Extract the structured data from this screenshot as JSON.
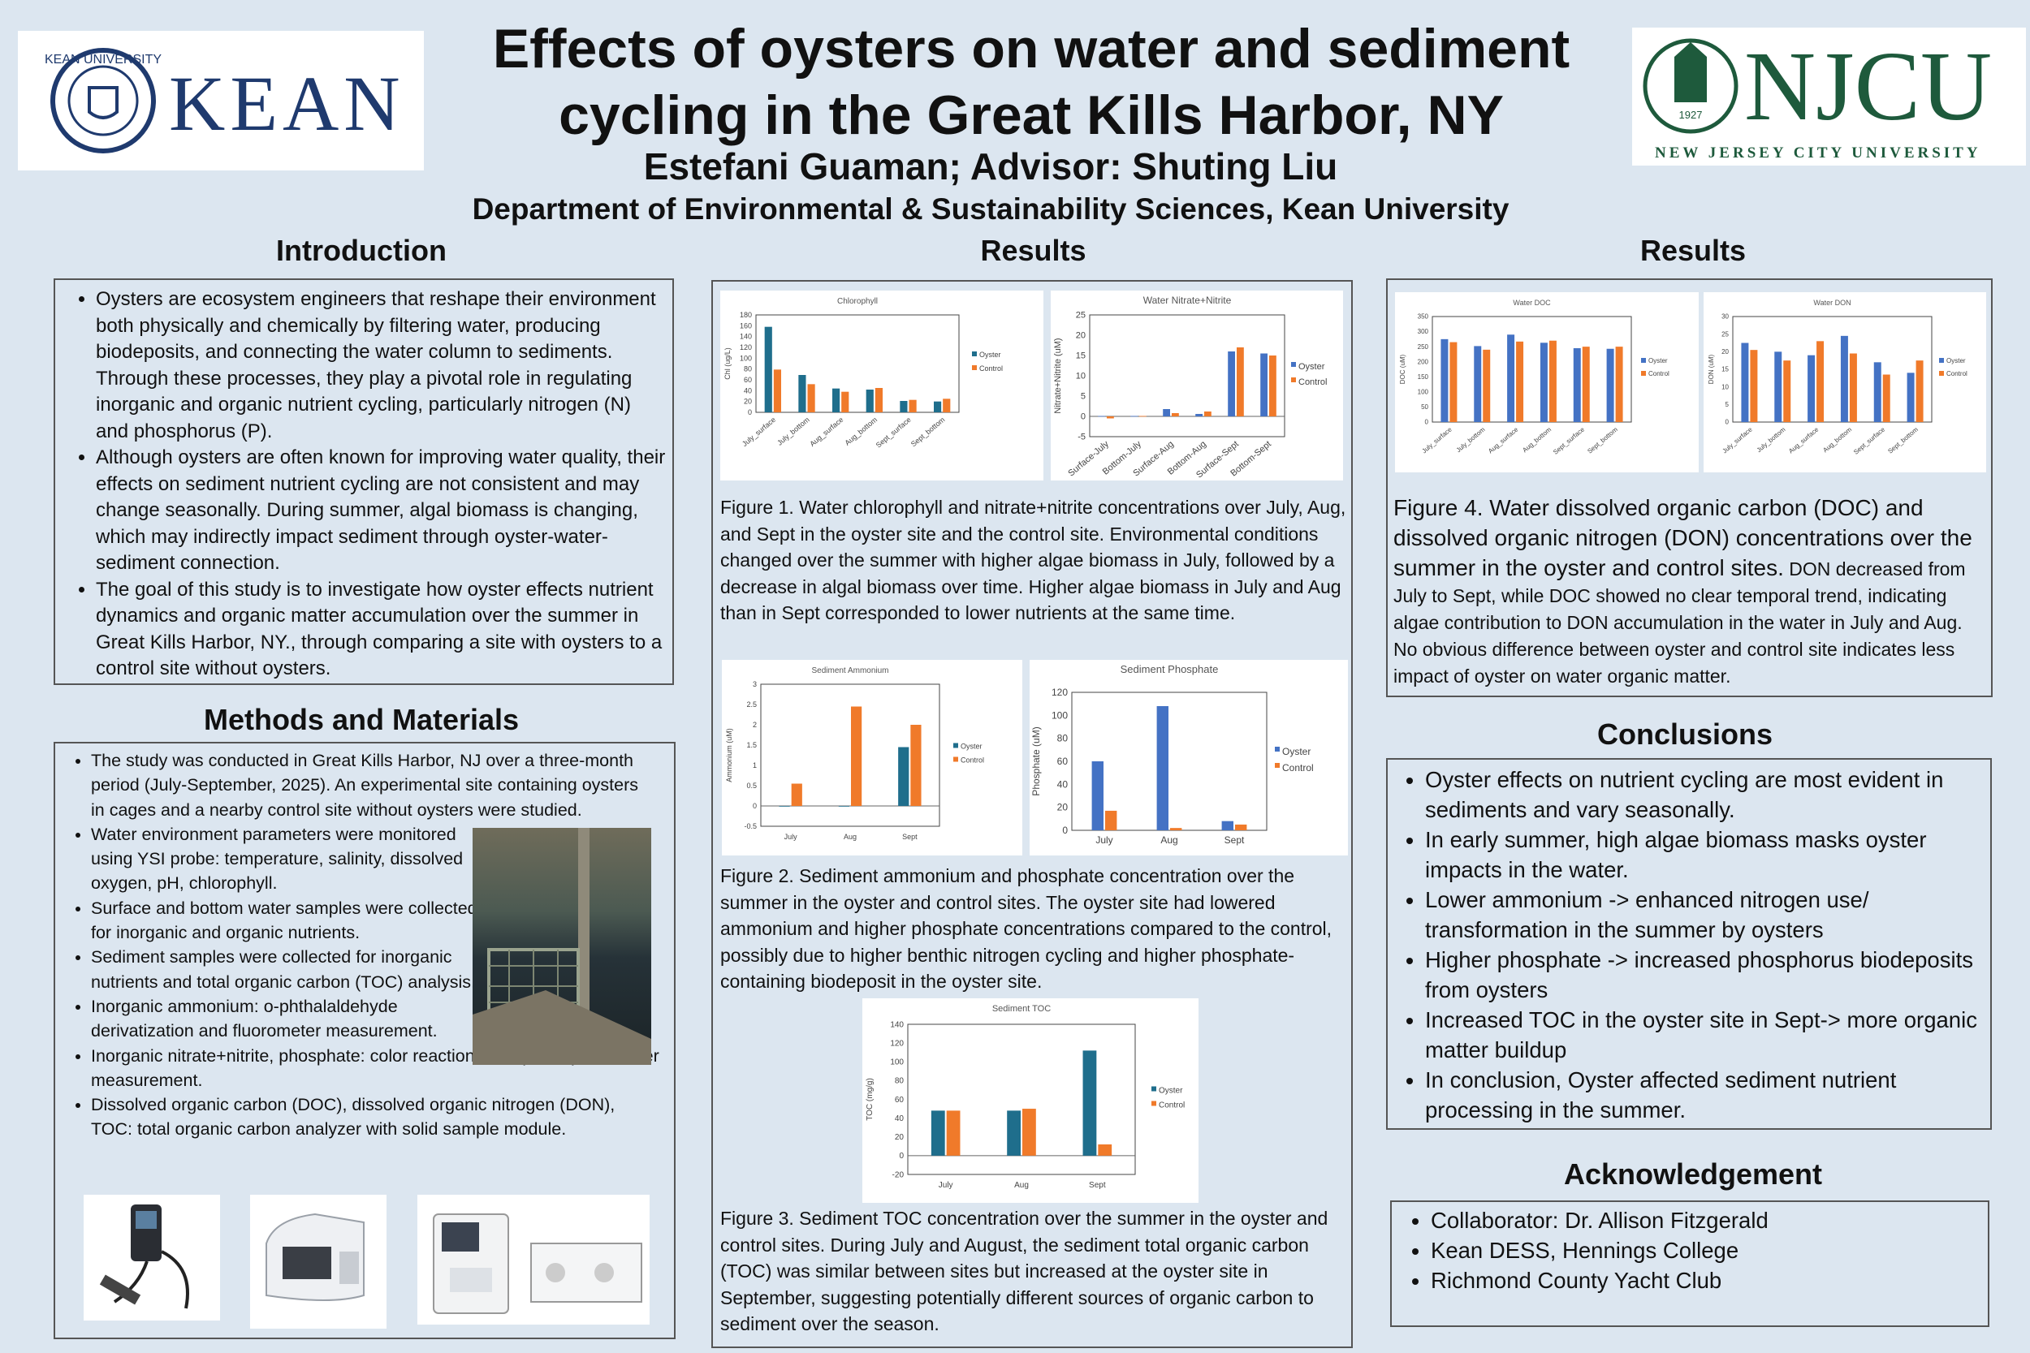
{
  "header": {
    "title_line1": "Effects of oysters on water and sediment",
    "title_line2": "cycling in the Great Kills Harbor, NY",
    "authors": "Estefani Guaman; Advisor: Shuting Liu",
    "department": "Department of Environmental & Sustainability Sciences, Kean University",
    "logo_left": {
      "wordmark": "KEAN",
      "seal_text": "KEAN UNIVERSITY",
      "color": "#1f3a6e"
    },
    "logo_right": {
      "wordmark": "NJCU",
      "subtitle": "NEW JERSEY CITY UNIVERSITY",
      "seal_year": "1927",
      "color": "#1e5a3c"
    }
  },
  "introduction": {
    "heading": "Introduction",
    "bullets": [
      "Oysters are ecosystem engineers that reshape their environment both physically and chemically by filtering water, producing biodeposits, and connecting the water column to sediments. Through these processes, they play a pivotal role in regulating inorganic and organic nutrient cycling, particularly nitrogen (N) and phosphorus (P).",
      "Although oysters are often known for improving water quality, their effects on sediment nutrient cycling are not consistent and may change seasonally.  During summer, algal biomass is changing, which may indirectly impact sediment through oyster-water-sediment connection.",
      "The goal of this study is to investigate how oyster effects nutrient dynamics and organic matter accumulation over the summer in Great Kills Harbor, NY., through comparing a site with oysters to a control site without oysters."
    ]
  },
  "methods": {
    "heading": "Methods and Materials",
    "bullets": [
      "The study was conducted in Great Kills Harbor, NJ over a three-month period (July-September, 2025). An experimental site containing oysters in cages and a nearby control site without oysters were studied.",
      "Water environment parameters were monitored using YSI probe: temperature, salinity, dissolved oxygen, pH, chlorophyll.",
      "Surface and bottom water samples were collected for inorganic and organic nutrients.",
      "Sediment samples were collected for inorganic nutrients and total organic carbon (TOC) analysis.",
      "Inorganic ammonium: o-phthalaldehyde derivatization and fluorometer measurement.",
      "Inorganic nitrate+nitrite, phosphate: color reaction and spectrophotometer measurement.",
      "Dissolved organic carbon (DOC), dissolved organic nitrogen (DON), TOC: total organic carbon analyzer with solid sample module."
    ]
  },
  "results_mid": {
    "heading": "Results",
    "fig1_caption": "Figure 1. Water chlorophyll and nitrate+nitrite concentrations over July, Aug, and Sept in the oyster site and the control site. Environmental conditions changed over the summer with higher algae biomass in July, followed by a decrease in algal biomass over time. Higher algae biomass in July and Aug than in Sept corresponded to lower nutrients at the same time.",
    "fig2_caption": "Figure 2. Sediment ammonium and phosphate concentration over the summer in the oyster and control sites. The oyster site had lowered ammonium and higher phosphate concentrations compared to the control, possibly due to higher benthic nitrogen cycling and higher phosphate-containing biodeposit in the oyster site.",
    "fig3_caption": "Figure 3. Sediment TOC concentration over the summer in the oyster and control sites. During July and August, the sediment total organic carbon (TOC) was similar between sites but increased at the oyster site in September, suggesting potentially different sources of organic carbon to sediment over the season."
  },
  "results_right": {
    "heading": "Results",
    "fig4_caption_large": "Figure 4. Water dissolved organic carbon (DOC) and dissolved organic nitrogen (DON) concentrations over the summer in the oyster and control sites.",
    "fig4_caption_small": "DON decreased from July to Sept, while DOC showed no clear temporal trend, indicating algae contribution to DON accumulation in the water in July and Aug. No obvious difference between oyster and control site indicates less impact of oyster on water organic matter."
  },
  "conclusions": {
    "heading": "Conclusions",
    "bullets": [
      "Oyster effects on nutrient cycling are most evident in sediments and vary seasonally.",
      "In early summer, high algae biomass masks oyster impacts in the water.",
      "Lower ammonium -> enhanced nitrogen use/ transformation in the summer by oysters",
      "Higher phosphate -> increased phosphorus biodeposits from oysters",
      "Increased TOC in the oyster site in Sept-> more organic matter buildup",
      "In conclusion, Oyster affected sediment nutrient processing in the summer."
    ]
  },
  "acknowledgement": {
    "heading": "Acknowledgement",
    "bullets": [
      "Collaborator: Dr. Allison Fitzgerald",
      "Kean DESS, Hennings College",
      "Richmond County Yacht Club"
    ]
  },
  "colors": {
    "oyster": "#1f6e8c",
    "control": "#f07a2a",
    "oyster_alt": "#4472c4",
    "background": "#dce6f0"
  },
  "chart_data": [
    {
      "id": "chl",
      "type": "bar",
      "title": "Chlorophyll",
      "ylabel": "Chl (ug/L)",
      "categories": [
        "July_surface",
        "July_bottom",
        "Aug_surface",
        "Aug_bottom",
        "Sept_surface",
        "Sept_bottom"
      ],
      "ylim": [
        0,
        180
      ],
      "yticks": [
        0,
        20,
        40,
        60,
        80,
        100,
        120,
        140,
        160,
        180
      ],
      "series": [
        {
          "name": "Oyster",
          "values": [
            158,
            69,
            44,
            42,
            21,
            20
          ]
        },
        {
          "name": "Control",
          "values": [
            79,
            52,
            38,
            45,
            23,
            25
          ]
        }
      ],
      "legend": "right"
    },
    {
      "id": "nox",
      "type": "bar",
      "title": "Water Nitrate+Nitrite",
      "ylabel": "Nitrate+Nitrite (uM)",
      "categories": [
        "Surface-July",
        "Bottom-July",
        "Surface-Aug",
        "Bottom-Aug",
        "Surface-Sept",
        "Bottom-Sept"
      ],
      "ylim": [
        -5,
        25
      ],
      "yticks": [
        -5,
        0,
        5,
        10,
        15,
        20,
        25
      ],
      "series": [
        {
          "name": "Oyster",
          "values": [
            0.1,
            0.1,
            1.8,
            0.6,
            16,
            15.5
          ]
        },
        {
          "name": "Control",
          "values": [
            -0.5,
            0.1,
            0.8,
            1.2,
            17,
            15
          ]
        }
      ],
      "legend": "right"
    },
    {
      "id": "amm",
      "type": "bar",
      "title": "Sediment Ammonium",
      "ylabel": "Ammonium (uM)",
      "categories": [
        "July",
        "Aug",
        "Sept"
      ],
      "ylim": [
        -0.5,
        3
      ],
      "yticks": [
        -0.5,
        0,
        0.5,
        1,
        1.5,
        2,
        2.5,
        3
      ],
      "series": [
        {
          "name": "Oyster",
          "values": [
            0,
            0,
            1.45
          ]
        },
        {
          "name": "Control",
          "values": [
            0.55,
            2.45,
            2.0
          ]
        }
      ],
      "legend": "right"
    },
    {
      "id": "pho",
      "type": "bar",
      "title": "Sediment Phosphate",
      "ylabel": "Phosphate (uM)",
      "categories": [
        "July",
        "Aug",
        "Sept"
      ],
      "ylim": [
        0,
        120
      ],
      "yticks": [
        0,
        20,
        40,
        60,
        80,
        100,
        120
      ],
      "series": [
        {
          "name": "Oyster",
          "values": [
            60,
            108,
            8
          ]
        },
        {
          "name": "Control",
          "values": [
            17,
            2,
            5
          ]
        }
      ],
      "legend": "right"
    },
    {
      "id": "toc",
      "type": "bar",
      "title": "Sediment TOC",
      "ylabel": "TOC (mg/g)",
      "categories": [
        "July",
        "Aug",
        "Sept"
      ],
      "ylim": [
        -20,
        140
      ],
      "yticks": [
        -20,
        0,
        20,
        40,
        60,
        80,
        100,
        120,
        140
      ],
      "series": [
        {
          "name": "Oyster",
          "values": [
            48,
            48,
            112
          ]
        },
        {
          "name": "Control",
          "values": [
            48,
            50,
            12
          ]
        }
      ],
      "legend": "right"
    },
    {
      "id": "doc",
      "type": "bar",
      "title": "Water DOC",
      "ylabel": "DOC (uM)",
      "categories": [
        "July_surface",
        "July_bottom",
        "Aug_surface",
        "Aug_bottom",
        "Sept_surface",
        "Sept_bottom"
      ],
      "ylim": [
        0,
        350
      ],
      "yticks": [
        0,
        50,
        100,
        150,
        200,
        250,
        300,
        350
      ],
      "series": [
        {
          "name": "Oyster",
          "values": [
            275,
            252,
            290,
            263,
            245,
            243
          ]
        },
        {
          "name": "Control",
          "values": [
            265,
            240,
            267,
            270,
            250,
            250
          ]
        }
      ],
      "legend": "right"
    },
    {
      "id": "don",
      "type": "bar",
      "title": "Water DON",
      "ylabel": "DON (uM)",
      "categories": [
        "July_surface",
        "July_bottom",
        "Aug_surface",
        "Aug_bottom",
        "Sept_surface",
        "Sept_bottom"
      ],
      "ylim": [
        0,
        30
      ],
      "yticks": [
        0,
        5,
        10,
        15,
        20,
        25,
        30
      ],
      "series": [
        {
          "name": "Oyster",
          "values": [
            22.5,
            20,
            19,
            24.5,
            17,
            14
          ]
        },
        {
          "name": "Control",
          "values": [
            20.5,
            17.5,
            23,
            19.5,
            13.5,
            17.5
          ]
        }
      ],
      "legend": "right"
    }
  ]
}
